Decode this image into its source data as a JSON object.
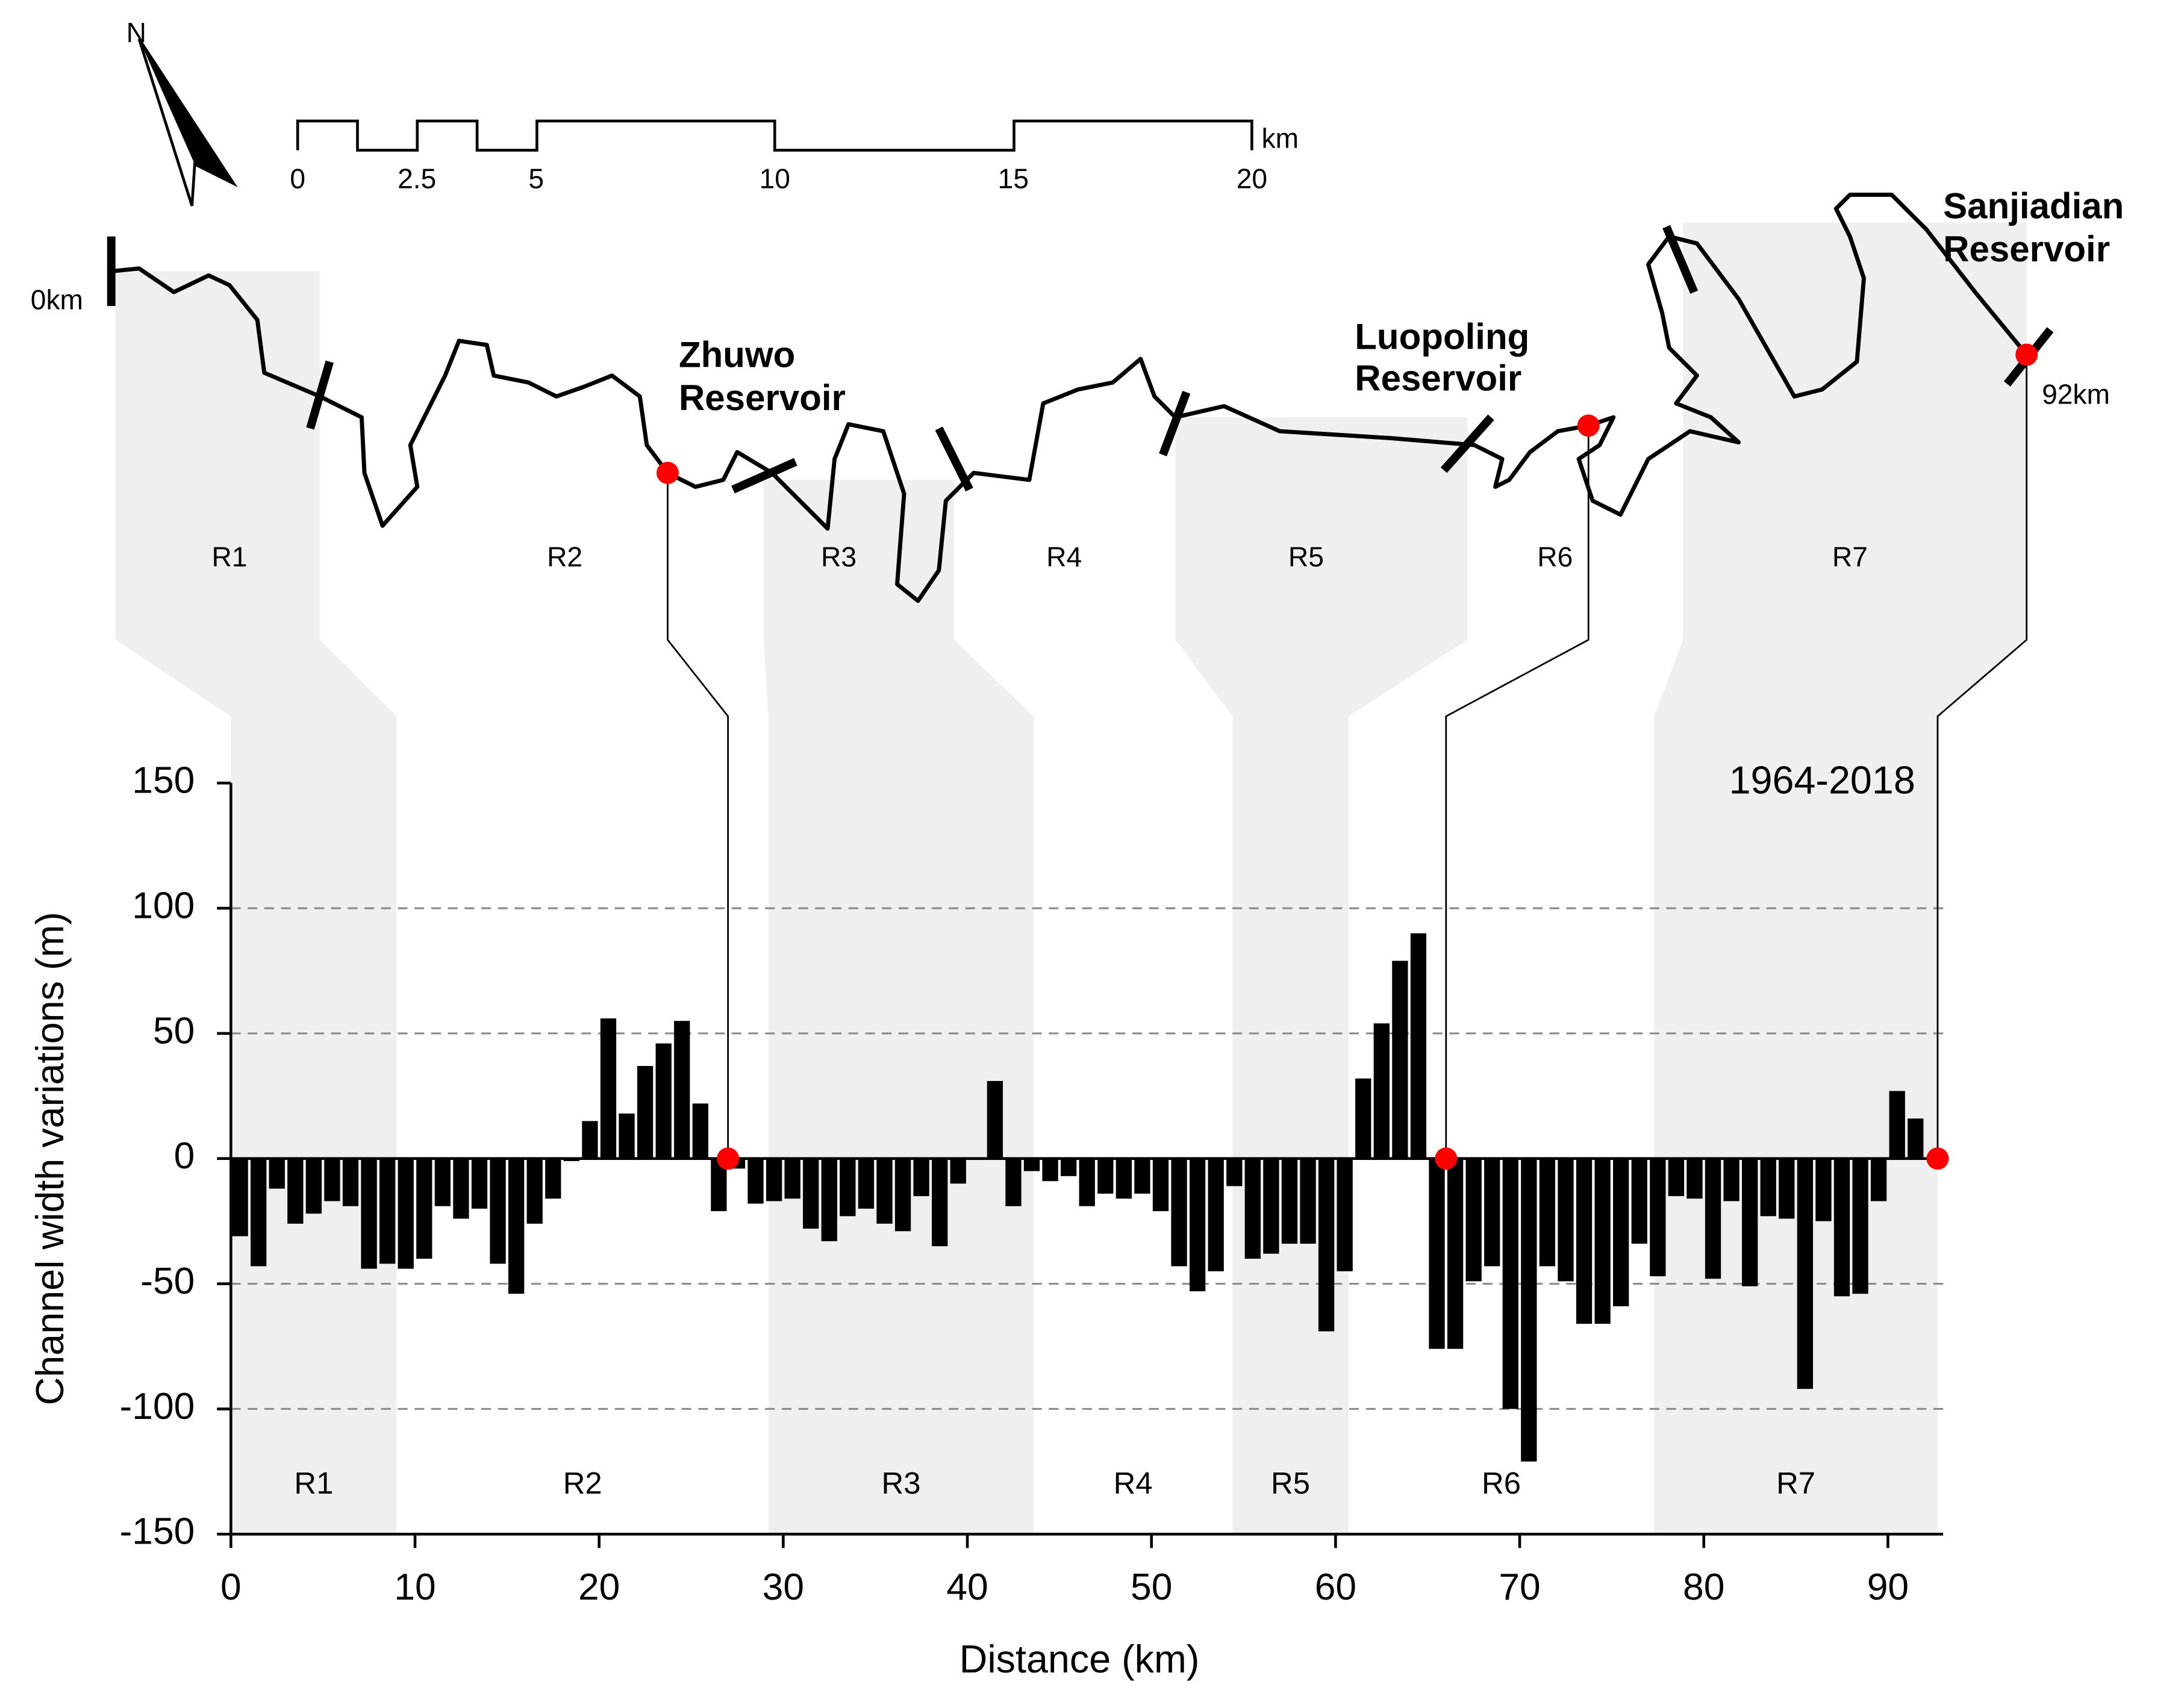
{
  "chart_data": {
    "type": "bar",
    "xlabel": "Distance (km)",
    "ylabel": "Channel width variations (m)",
    "annotation": "1964-2018",
    "x": [
      0.5,
      1.5,
      2.5,
      3.5,
      4.5,
      5.5,
      6.5,
      7.5,
      8.5,
      9.5,
      10.5,
      11.5,
      12.5,
      13.5,
      14.5,
      15.5,
      16.5,
      17.5,
      18.5,
      19.5,
      20.5,
      21.5,
      22.5,
      23.5,
      24.5,
      25.5,
      26.5,
      27.5,
      28.5,
      29.5,
      30.5,
      31.5,
      32.5,
      33.5,
      34.5,
      35.5,
      36.5,
      37.5,
      38.5,
      39.5,
      40.5,
      41.5,
      42.5,
      43.5,
      44.5,
      45.5,
      46.5,
      47.5,
      48.5,
      49.5,
      50.5,
      51.5,
      52.5,
      53.5,
      54.5,
      55.5,
      56.5,
      57.5,
      58.5,
      59.5,
      60.5,
      61.5,
      62.5,
      63.5,
      64.5,
      65.5,
      66.5,
      67.5,
      68.5,
      69.5,
      70.5,
      71.5,
      72.5,
      73.5,
      74.5,
      75.5,
      76.5,
      77.5,
      78.5,
      79.5,
      80.5,
      81.5,
      82.5,
      83.5,
      84.5,
      85.5,
      86.5,
      87.5,
      88.5,
      89.5,
      90.5,
      91.5
    ],
    "values": [
      -31,
      -43,
      -12,
      -26,
      -22,
      -17,
      -19,
      -44,
      -42,
      -44,
      -40,
      -19,
      -24,
      -20,
      -42,
      -54,
      -26,
      -16,
      -1,
      15,
      56,
      18,
      37,
      46,
      55,
      22,
      -21,
      -4,
      -18,
      -17,
      -16,
      -28,
      -33,
      -23,
      -20,
      -26,
      -29,
      -15,
      -35,
      -10,
      0,
      31,
      -19,
      -5,
      -9,
      -7,
      -19,
      -14,
      -16,
      -14,
      -21,
      -43,
      -53,
      -45,
      -11,
      -40,
      -38,
      -34,
      -34,
      -69,
      -45,
      32,
      54,
      79,
      90,
      -76,
      -76,
      -49,
      -43,
      -100,
      -121,
      -43,
      -49,
      -66,
      -66,
      -59,
      -34,
      -47,
      -15,
      -16,
      -48,
      -17,
      -51,
      -23,
      -24,
      -92,
      -25,
      -55,
      -54,
      -17,
      27,
      16
    ],
    "color": "#000000",
    "xlim": [
      0,
      93
    ],
    "xticks": [
      0,
      10,
      20,
      30,
      40,
      50,
      60,
      70,
      80,
      90
    ],
    "ylim": [
      -150,
      150
    ],
    "yticks": [
      -150,
      -100,
      -50,
      0,
      50,
      100,
      150
    ],
    "grid": true,
    "regions": [
      {
        "label": "R1",
        "start": 0,
        "end": 9,
        "shaded": true
      },
      {
        "label": "R2",
        "start": 9,
        "end": 29.2,
        "shaded": false
      },
      {
        "label": "R3",
        "start": 29.2,
        "end": 43.6,
        "shaded": true
      },
      {
        "label": "R4",
        "start": 43.6,
        "end": 54.4,
        "shaded": false
      },
      {
        "label": "R5",
        "start": 54.4,
        "end": 60.7,
        "shaded": true
      },
      {
        "label": "R6",
        "start": 60.7,
        "end": 77.3,
        "shaded": false
      },
      {
        "label": "R7",
        "start": 77.3,
        "end": 92.7,
        "shaded": true
      }
    ],
    "reservoir_points": [
      {
        "x": 27,
        "y": 0,
        "color": "#ff0000"
      },
      {
        "x": 66,
        "y": 0,
        "color": "#ff0000"
      },
      {
        "x": 92.7,
        "y": 0,
        "color": "#ff0000"
      }
    ]
  },
  "map": {
    "north": "N",
    "scale_ticks": [
      0,
      2.5,
      5,
      10,
      15,
      20
    ],
    "scale_unit": "km",
    "start_label": "0km",
    "end_label": "92km",
    "reservoirs": [
      {
        "lines": [
          "Zhuwo",
          "Reservoir"
        ]
      },
      {
        "lines": [
          "Luopoling",
          "Reservoir"
        ]
      },
      {
        "lines": [
          "Sanjiadian",
          "Reservoir"
        ]
      }
    ]
  }
}
